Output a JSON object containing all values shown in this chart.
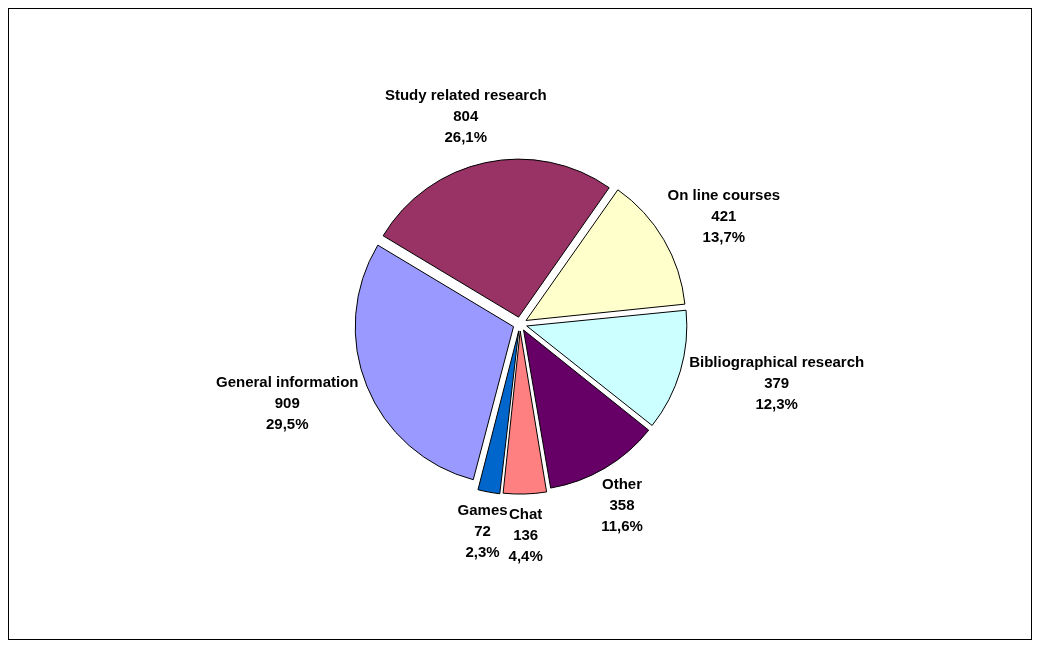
{
  "chart_data": {
    "type": "pie",
    "categories": [
      "Study related research",
      "On line courses",
      "Bibliographical research",
      "Other",
      "Chat",
      "Games",
      "General information"
    ],
    "values": [
      804,
      421,
      379,
      358,
      136,
      72,
      909
    ],
    "colors": [
      "#993366",
      "#ffffcc",
      "#ccffff",
      "#660066",
      "#ff8080",
      "#0066cc",
      "#9999ff"
    ],
    "value_labels": [
      "804\n26,1%",
      "421\n13,7%",
      "379\n12,3%",
      "358\n11,6%",
      "136\n4,4%",
      "72\n2,3%",
      "909\n29,5%"
    ],
    "legend": false
  }
}
